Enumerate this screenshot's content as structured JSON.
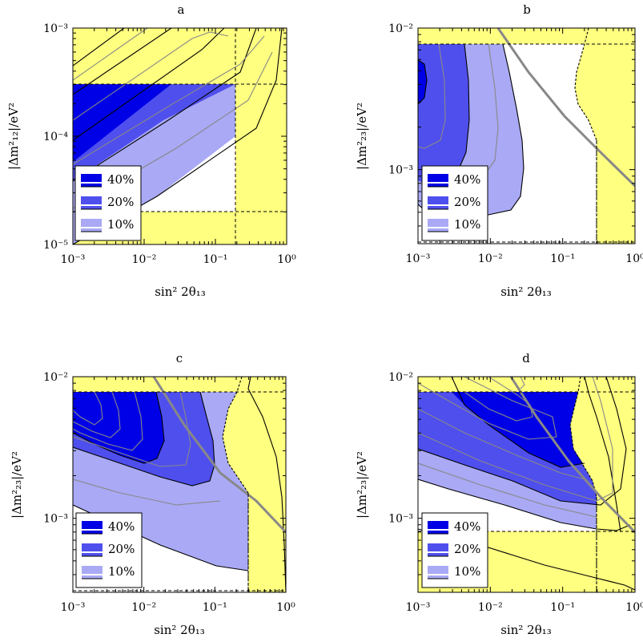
{
  "colors": {
    "excluded": "#ffff80",
    "level40": "#0000e6",
    "level20": "#4f4fee",
    "level10": "#a9a9f5",
    "contour_gray": "#888888",
    "edge": "#000000"
  },
  "legend": [
    "40%",
    "20%",
    "10%"
  ],
  "chart_data": [
    {
      "type": "contour",
      "title": "a",
      "xlabel": "sin² 2θ₁₃",
      "ylabel": "|Δm²₁₂|/eV²",
      "xscale": "log",
      "yscale": "log",
      "xlim": [
        0.001,
        1
      ],
      "ylim": [
        1e-05,
        0.001
      ],
      "x_ticks": [
        "10⁻³",
        "10⁻²",
        "10⁻¹",
        "10⁰"
      ],
      "y_ticks": [
        "10⁻⁵",
        "10⁻⁴",
        "10⁻³"
      ],
      "excluded_bounds": {
        "x_max": 0.2,
        "y_min": 2e-05,
        "y_max": 0.0003
      },
      "levels": [
        "40%",
        "20%",
        "10%"
      ],
      "legend_position": "bottom-left"
    },
    {
      "type": "contour",
      "title": "b",
      "xlabel": "sin² 2θ₁₃",
      "ylabel": "|Δm²₂₃|/eV²",
      "xscale": "log",
      "yscale": "log",
      "xlim": [
        0.001,
        1
      ],
      "ylim": [
        0.0003,
        0.01
      ],
      "x_ticks": [
        "10⁻³",
        "10⁻²",
        "10⁻¹",
        "10⁰"
      ],
      "y_ticks": [
        "10⁻³",
        "10⁻²"
      ],
      "excluded_bounds": {
        "x_max": 0.3,
        "y_min": 0.0003,
        "y_max": 0.0078
      },
      "levels": [
        "40%",
        "20%",
        "10%"
      ],
      "legend_position": "bottom-left"
    },
    {
      "type": "contour",
      "title": "c",
      "xlabel": "sin² 2θ₁₃",
      "ylabel": "|Δm²₂₃|/eV²",
      "xscale": "log",
      "yscale": "log",
      "xlim": [
        0.001,
        1
      ],
      "ylim": [
        0.0003,
        0.01
      ],
      "x_ticks": [
        "10⁻³",
        "10⁻²",
        "10⁻¹",
        "10⁰"
      ],
      "y_ticks": [
        "10⁻³",
        "10⁻²"
      ],
      "excluded_bounds": {
        "x_max": 0.3,
        "y_min": 0.0003,
        "y_max": 0.0078
      },
      "levels": [
        "40%",
        "20%",
        "10%"
      ],
      "legend_position": "bottom-left"
    },
    {
      "type": "contour",
      "title": "d",
      "xlabel": "sin² 2θ₁₃",
      "ylabel": "|Δm²₂₃|/eV²",
      "xscale": "log",
      "yscale": "log",
      "xlim": [
        0.001,
        1
      ],
      "ylim": [
        0.0003,
        0.01
      ],
      "x_ticks": [
        "10⁻³",
        "10⁻²",
        "10⁻¹",
        "10⁰"
      ],
      "y_ticks": [
        "10⁻³",
        "10⁻²"
      ],
      "excluded_bounds": {
        "x_max": 0.3,
        "y_min": 0.0008,
        "y_max": 0.0078
      },
      "levels": [
        "40%",
        "20%",
        "10%"
      ],
      "legend_position": "bottom-left"
    }
  ]
}
